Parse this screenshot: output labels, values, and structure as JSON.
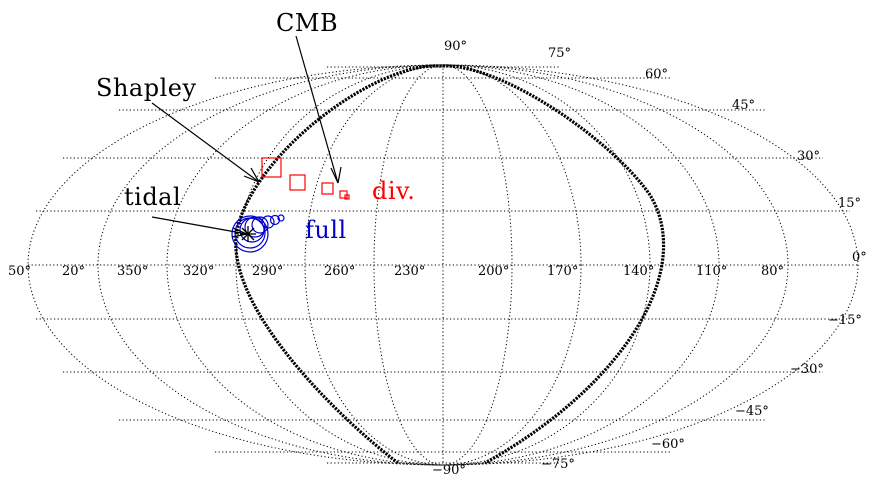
{
  "longitude_labels": [
    {
      "text": "50°"
    },
    {
      "text": "20°"
    },
    {
      "text": "350°"
    },
    {
      "text": "320°"
    },
    {
      "text": "290°"
    },
    {
      "text": "260°"
    },
    {
      "text": "230°"
    },
    {
      "text": "200°"
    },
    {
      "text": "170°"
    },
    {
      "text": "140°"
    },
    {
      "text": "110°"
    },
    {
      "text": "80°"
    }
  ],
  "latitude_labels": [
    {
      "text": "90°"
    },
    {
      "text": "75°"
    },
    {
      "text": "60°"
    },
    {
      "text": "45°"
    },
    {
      "text": "30°"
    },
    {
      "text": "15°"
    },
    {
      "text": "0°"
    },
    {
      "text": "−15°"
    },
    {
      "text": "−30°"
    },
    {
      "text": "−45°"
    },
    {
      "text": "−60°"
    },
    {
      "text": "−75°"
    },
    {
      "text": "−90°"
    }
  ],
  "annotations": {
    "cmb": "CMB",
    "shapley": "Shapley",
    "tidal": "tidal",
    "div": "div.",
    "full": "full"
  },
  "colors": {
    "div_series": "#ff0000",
    "full_series": "#0000cc",
    "grid": "#000000"
  },
  "markers": {
    "div_squares": 4,
    "full_circles": 8
  }
}
